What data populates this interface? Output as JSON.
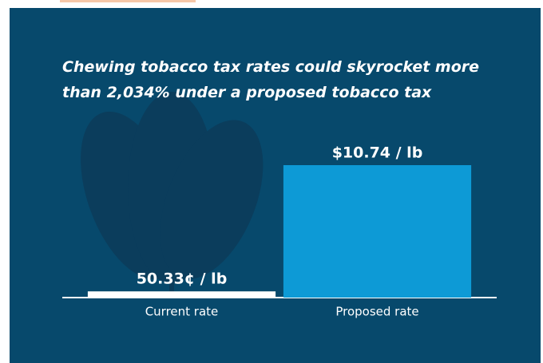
{
  "chart_data": {
    "type": "bar",
    "title": "Chewing tobacco tax rates could skyrocket more than 2,034% under a proposed tobacco tax",
    "categories": [
      "Current rate",
      "Proposed rate"
    ],
    "values": [
      0.5033,
      10.74
    ],
    "value_labels": [
      "50.33¢ / lb",
      "$10.74 / lb"
    ],
    "colors": [
      "#ffffff",
      "#0d9ad6"
    ]
  }
}
